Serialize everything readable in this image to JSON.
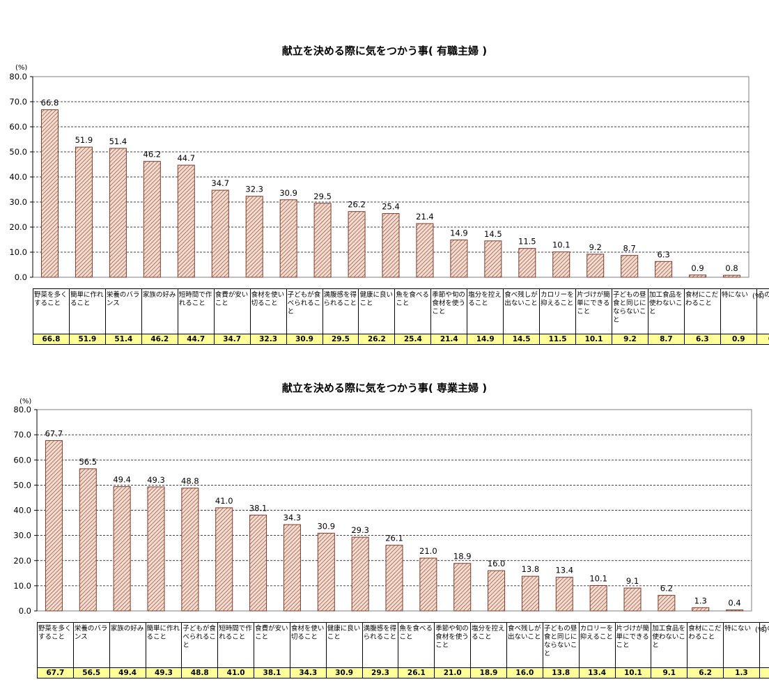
{
  "chart_data": [
    {
      "type": "bar",
      "title": "献立を決める際に気をつかう事( 有職主婦 )",
      "yunit": "(%)",
      "table_unit": "(%)",
      "ylim": [
        0,
        80
      ],
      "yticks": [
        "0.0",
        "10.0",
        "20.0",
        "30.0",
        "40.0",
        "50.0",
        "60.0",
        "70.0",
        "80.0"
      ],
      "grid": true,
      "bar_color": "#c0907a",
      "categories": [
        "野菜を多くすること",
        "簡単に作れること",
        "栄養のバランス",
        "家族の好み",
        "短時間で作れること",
        "食費が安いこと",
        "食材を使い切ること",
        "子どもが食べられること",
        "満腹感を得られること",
        "健康に良いこと",
        "魚を食べること",
        "季節や旬の食材を使うこと",
        "塩分を控えること",
        "食べ残しが出ないこと",
        "カロリーを抑えること",
        "片づけが簡単にできること",
        "子どもの昼食と同じにならないこと",
        "加工食品を使わないこと",
        "食材にこだわること",
        "特にない",
        "その他"
      ],
      "values": [
        66.8,
        51.9,
        51.4,
        46.2,
        44.7,
        34.7,
        32.3,
        30.9,
        29.5,
        26.2,
        25.4,
        21.4,
        14.9,
        14.5,
        11.5,
        10.1,
        9.2,
        8.7,
        6.3,
        0.9,
        0.8
      ],
      "value_labels": [
        "66.8",
        "51.9",
        "51.4",
        "46.2",
        "44.7",
        "34.7",
        "32.3",
        "30.9",
        "29.5",
        "26.2",
        "25.4",
        "21.4",
        "14.9",
        "14.5",
        "11.5",
        "10.1",
        "9.2",
        "8.7",
        "6.3",
        "0.9",
        "0.8"
      ]
    },
    {
      "type": "bar",
      "title": "献立を決める際に気をつかう事( 専業主婦 )",
      "yunit": "(%)",
      "table_unit": "(%)",
      "ylim": [
        0,
        80
      ],
      "yticks": [
        "0.0",
        "10.0",
        "20.0",
        "30.0",
        "40.0",
        "50.0",
        "60.0",
        "70.0",
        "80.0"
      ],
      "grid": true,
      "bar_color": "#c0907a",
      "categories": [
        "野菜を多くすること",
        "栄養のバランス",
        "家族の好み",
        "簡単に作れること",
        "子どもが食べられること",
        "短時間で作れること",
        "食費が安いこと",
        "食材を使い切ること",
        "健康に良いこと",
        "満腹感を得られること",
        "魚を食べること",
        "季節や旬の食材を使うこと",
        "塩分を控えること",
        "食べ残しが出ないこと",
        "子どもの昼食と同じにならないこと",
        "カロリーを抑えること",
        "片づけが簡単にできること",
        "加工食品を使わないこと",
        "食材にこだわること",
        "特にない",
        "その他"
      ],
      "values": [
        67.7,
        56.5,
        49.4,
        49.3,
        48.8,
        41.0,
        38.1,
        34.3,
        30.9,
        29.3,
        26.1,
        21.0,
        18.9,
        16.0,
        13.8,
        13.4,
        10.1,
        9.1,
        6.2,
        1.3,
        0.4
      ],
      "value_labels": [
        "67.7",
        "56.5",
        "49.4",
        "49.3",
        "48.8",
        "41.0",
        "38.1",
        "34.3",
        "30.9",
        "29.3",
        "26.1",
        "21.0",
        "18.9",
        "16.0",
        "13.8",
        "13.4",
        "10.1",
        "9.1",
        "6.2",
        "1.3",
        "0.4"
      ]
    }
  ]
}
